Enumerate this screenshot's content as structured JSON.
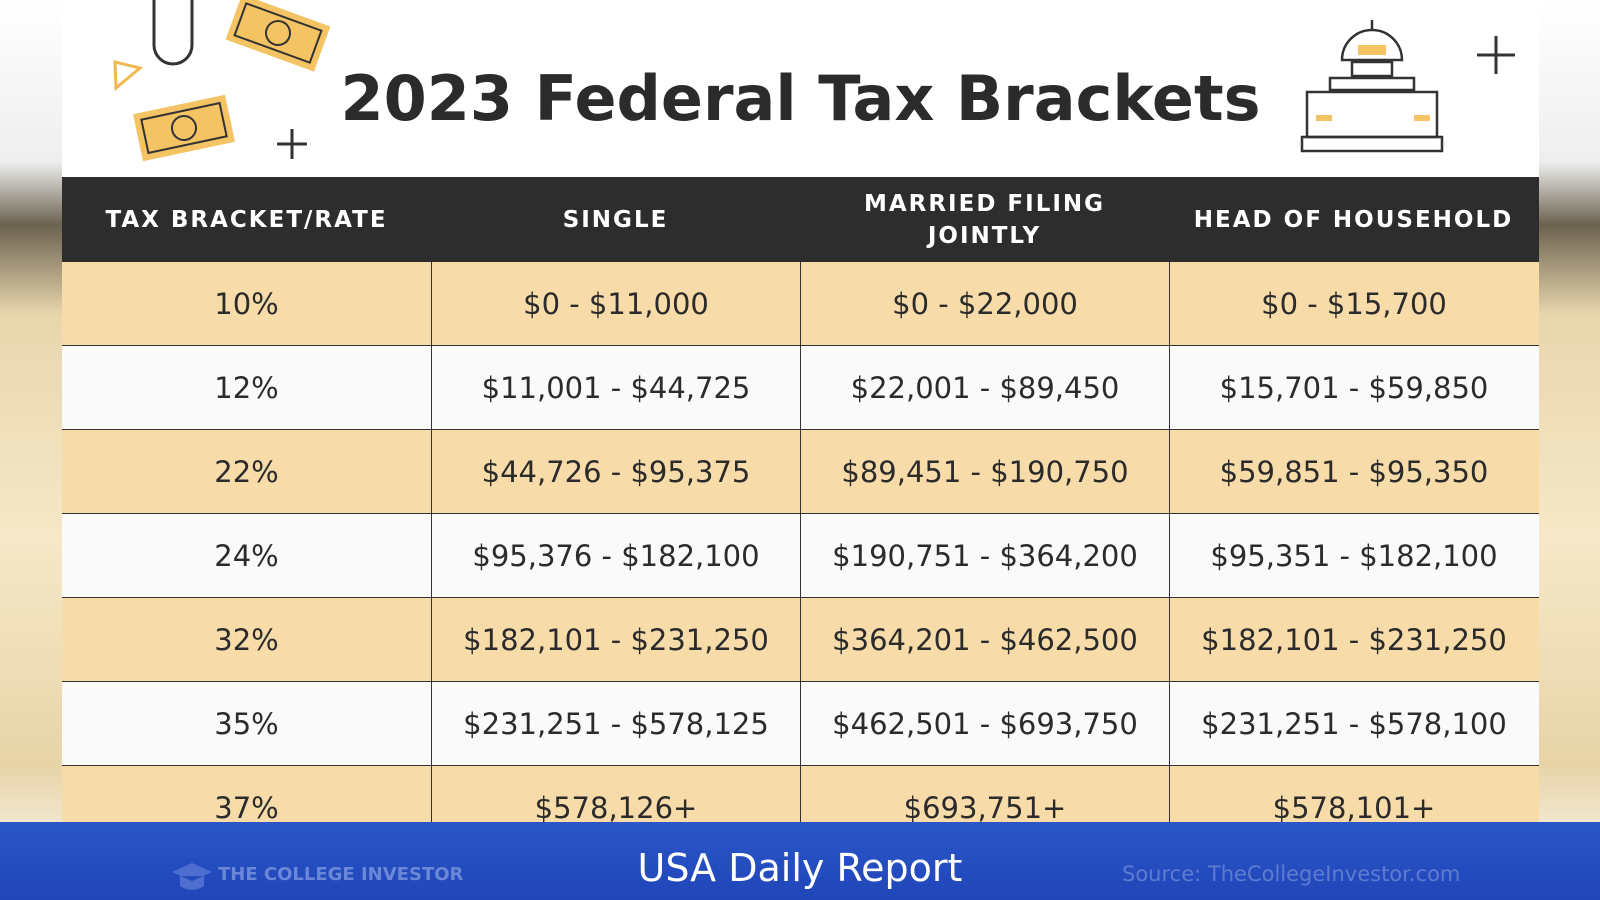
{
  "header": {
    "title": "2023 Federal Tax Brackets"
  },
  "table": {
    "columns": [
      "TAX BRACKET/RATE",
      "SINGLE",
      "MARRIED FILING JOINTLY",
      "HEAD OF HOUSEHOLD"
    ],
    "rows": [
      [
        "10%",
        "$0 - $11,000",
        "$0 - $22,000",
        "$0 - $15,700"
      ],
      [
        "12%",
        "$11,001 - $44,725",
        "$22,001 - $89,450",
        "$15,701 - $59,850"
      ],
      [
        "22%",
        "$44,726 - $95,375",
        "$89,451 - $190,750",
        "$59,851 - $95,350"
      ],
      [
        "24%",
        "$95,376 - $182,100",
        "$190,751 - $364,200",
        "$95,351 - $182,100"
      ],
      [
        "32%",
        "$182,101 - $231,250",
        "$364,201 - $462,500",
        "$182,101 - $231,250"
      ],
      [
        "35%",
        "$231,251 - $578,125",
        "$462,501 - $693,750",
        "$231,251 - $578,100"
      ],
      [
        "37%",
        "$578,126+",
        "$693,751+",
        "$578,101+"
      ]
    ]
  },
  "footer": {
    "brand": "THE COLLEGE INVESTOR",
    "channel": "USA Daily Report",
    "source": "Source: TheCollegeInvestor.com"
  }
}
